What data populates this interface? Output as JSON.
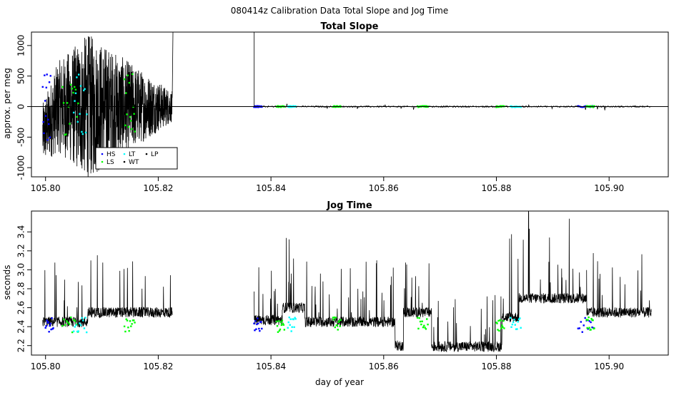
{
  "figure": {
    "title": "080414z   Calibration Data Total Slope and Jog Time"
  },
  "chart_data": [
    {
      "type": "line",
      "title": "Total Slope",
      "xlabel": "",
      "ylabel": "approx. per meg",
      "xlim": [
        105.7975,
        105.9105
      ],
      "ylim": [
        -1150,
        1220
      ],
      "x_ticks": [
        105.8,
        105.82,
        105.84,
        105.86,
        105.88,
        105.9
      ],
      "x_tick_labels": [
        "105.80",
        "105.82",
        "105.84",
        "105.86",
        "105.88",
        "105.90"
      ],
      "y_ticks": [
        -1000,
        -500,
        0,
        500,
        1000
      ],
      "y_tick_labels": [
        "-1000",
        "-500",
        "0",
        "500",
        "1000"
      ],
      "hline": 0,
      "legend": {
        "position": "bottom-left",
        "entries": [
          {
            "label": "HS",
            "color": "#0000ff"
          },
          {
            "label": "LS",
            "color": "#00ff00"
          },
          {
            "label": "LT",
            "color": "#00ffff"
          },
          {
            "label": "WT",
            "color": "#000000"
          },
          {
            "label": "LP",
            "color": "#000000"
          }
        ]
      },
      "series": [
        {
          "name": "WT",
          "color": "#000000",
          "segments": [
            {
              "x_range": [
                105.7995,
                105.8225
              ],
              "amplitude_start": 500,
              "amplitude_peak": 1200,
              "amplitude_end": 250
            },
            {
              "x_range": [
                105.837,
                105.9075
              ],
              "amplitude": 12
            }
          ]
        },
        {
          "name": "HS",
          "color": "#0000ff",
          "x_ranges": [
            [
              105.7995,
              105.801
            ],
            [
              105.837,
              105.8385
            ],
            [
              105.8945,
              105.8975
            ]
          ]
        },
        {
          "name": "LS",
          "color": "#00ff00",
          "x_ranges": [
            [
              105.803,
              105.806
            ],
            [
              105.814,
              105.816
            ],
            [
              105.841,
              105.8425
            ],
            [
              105.851,
              105.8525
            ],
            [
              105.866,
              105.868
            ],
            [
              105.88,
              105.8815
            ],
            [
              105.896,
              105.8975
            ]
          ]
        },
        {
          "name": "LT",
          "color": "#00ffff",
          "x_ranges": [
            [
              105.805,
              105.8075
            ],
            [
              105.843,
              105.8445
            ],
            [
              105.8825,
              105.8845
            ]
          ]
        }
      ]
    },
    {
      "type": "line",
      "title": "Jog Time",
      "xlabel": "day of year",
      "ylabel": "seconds",
      "xlim": [
        105.7975,
        105.9105
      ],
      "ylim": [
        2.1,
        3.62
      ],
      "x_ticks": [
        105.8,
        105.82,
        105.84,
        105.86,
        105.88,
        105.9
      ],
      "x_tick_labels": [
        "105.80",
        "105.82",
        "105.84",
        "105.86",
        "105.88",
        "105.90"
      ],
      "y_ticks": [
        2.2,
        2.4,
        2.6,
        2.8,
        3.0,
        3.2,
        3.4
      ],
      "y_tick_labels": [
        "2.2",
        "2.4",
        "2.6",
        "2.8",
        "3.0",
        "3.2",
        "3.4"
      ],
      "series": [
        {
          "name": "WT",
          "color": "#000000",
          "segments": [
            {
              "x_range": [
                105.7995,
                105.8075
              ],
              "base": 2.45,
              "spike": 3.0
            },
            {
              "x_range": [
                105.8075,
                105.8225
              ],
              "base": 2.55,
              "spike": 3.1
            },
            {
              "x_range": [
                105.837,
                105.842
              ],
              "base": 2.47,
              "spike": 2.95
            },
            {
              "x_range": [
                105.842,
                105.846
              ],
              "base": 2.6,
              "spike": 3.5
            },
            {
              "x_range": [
                105.846,
                105.862
              ],
              "base": 2.45,
              "spike": 3.0
            },
            {
              "x_range": [
                105.862,
                105.8635
              ],
              "base": 2.2,
              "spike": 2.4
            },
            {
              "x_range": [
                105.8635,
                105.8685
              ],
              "base": 2.55,
              "spike": 3.0
            },
            {
              "x_range": [
                105.8685,
                105.881
              ],
              "base": 2.19,
              "spike": 2.65
            },
            {
              "x_range": [
                105.881,
                105.884
              ],
              "base": 2.5,
              "spike": 3.3
            },
            {
              "x_range": [
                105.884,
                105.896
              ],
              "base": 2.7,
              "spike": 3.6
            },
            {
              "x_range": [
                105.896,
                105.9075
              ],
              "base": 2.55,
              "spike": 3.1
            }
          ]
        },
        {
          "name": "HS",
          "color": "#0000ff",
          "x_ranges": [
            [
              105.8,
              105.8015
            ],
            [
              105.837,
              105.8385
            ],
            [
              105.8945,
              105.8975
            ]
          ]
        },
        {
          "name": "LS",
          "color": "#00ff00",
          "x_ranges": [
            [
              105.803,
              105.806
            ],
            [
              105.814,
              105.816
            ],
            [
              105.841,
              105.8425
            ],
            [
              105.851,
              105.8525
            ],
            [
              105.866,
              105.868
            ],
            [
              105.88,
              105.8815
            ],
            [
              105.896,
              105.8975
            ]
          ]
        },
        {
          "name": "LT",
          "color": "#00ffff",
          "x_ranges": [
            [
              105.805,
              105.8075
            ],
            [
              105.843,
              105.8445
            ],
            [
              105.8825,
              105.8845
            ]
          ]
        }
      ]
    }
  ]
}
